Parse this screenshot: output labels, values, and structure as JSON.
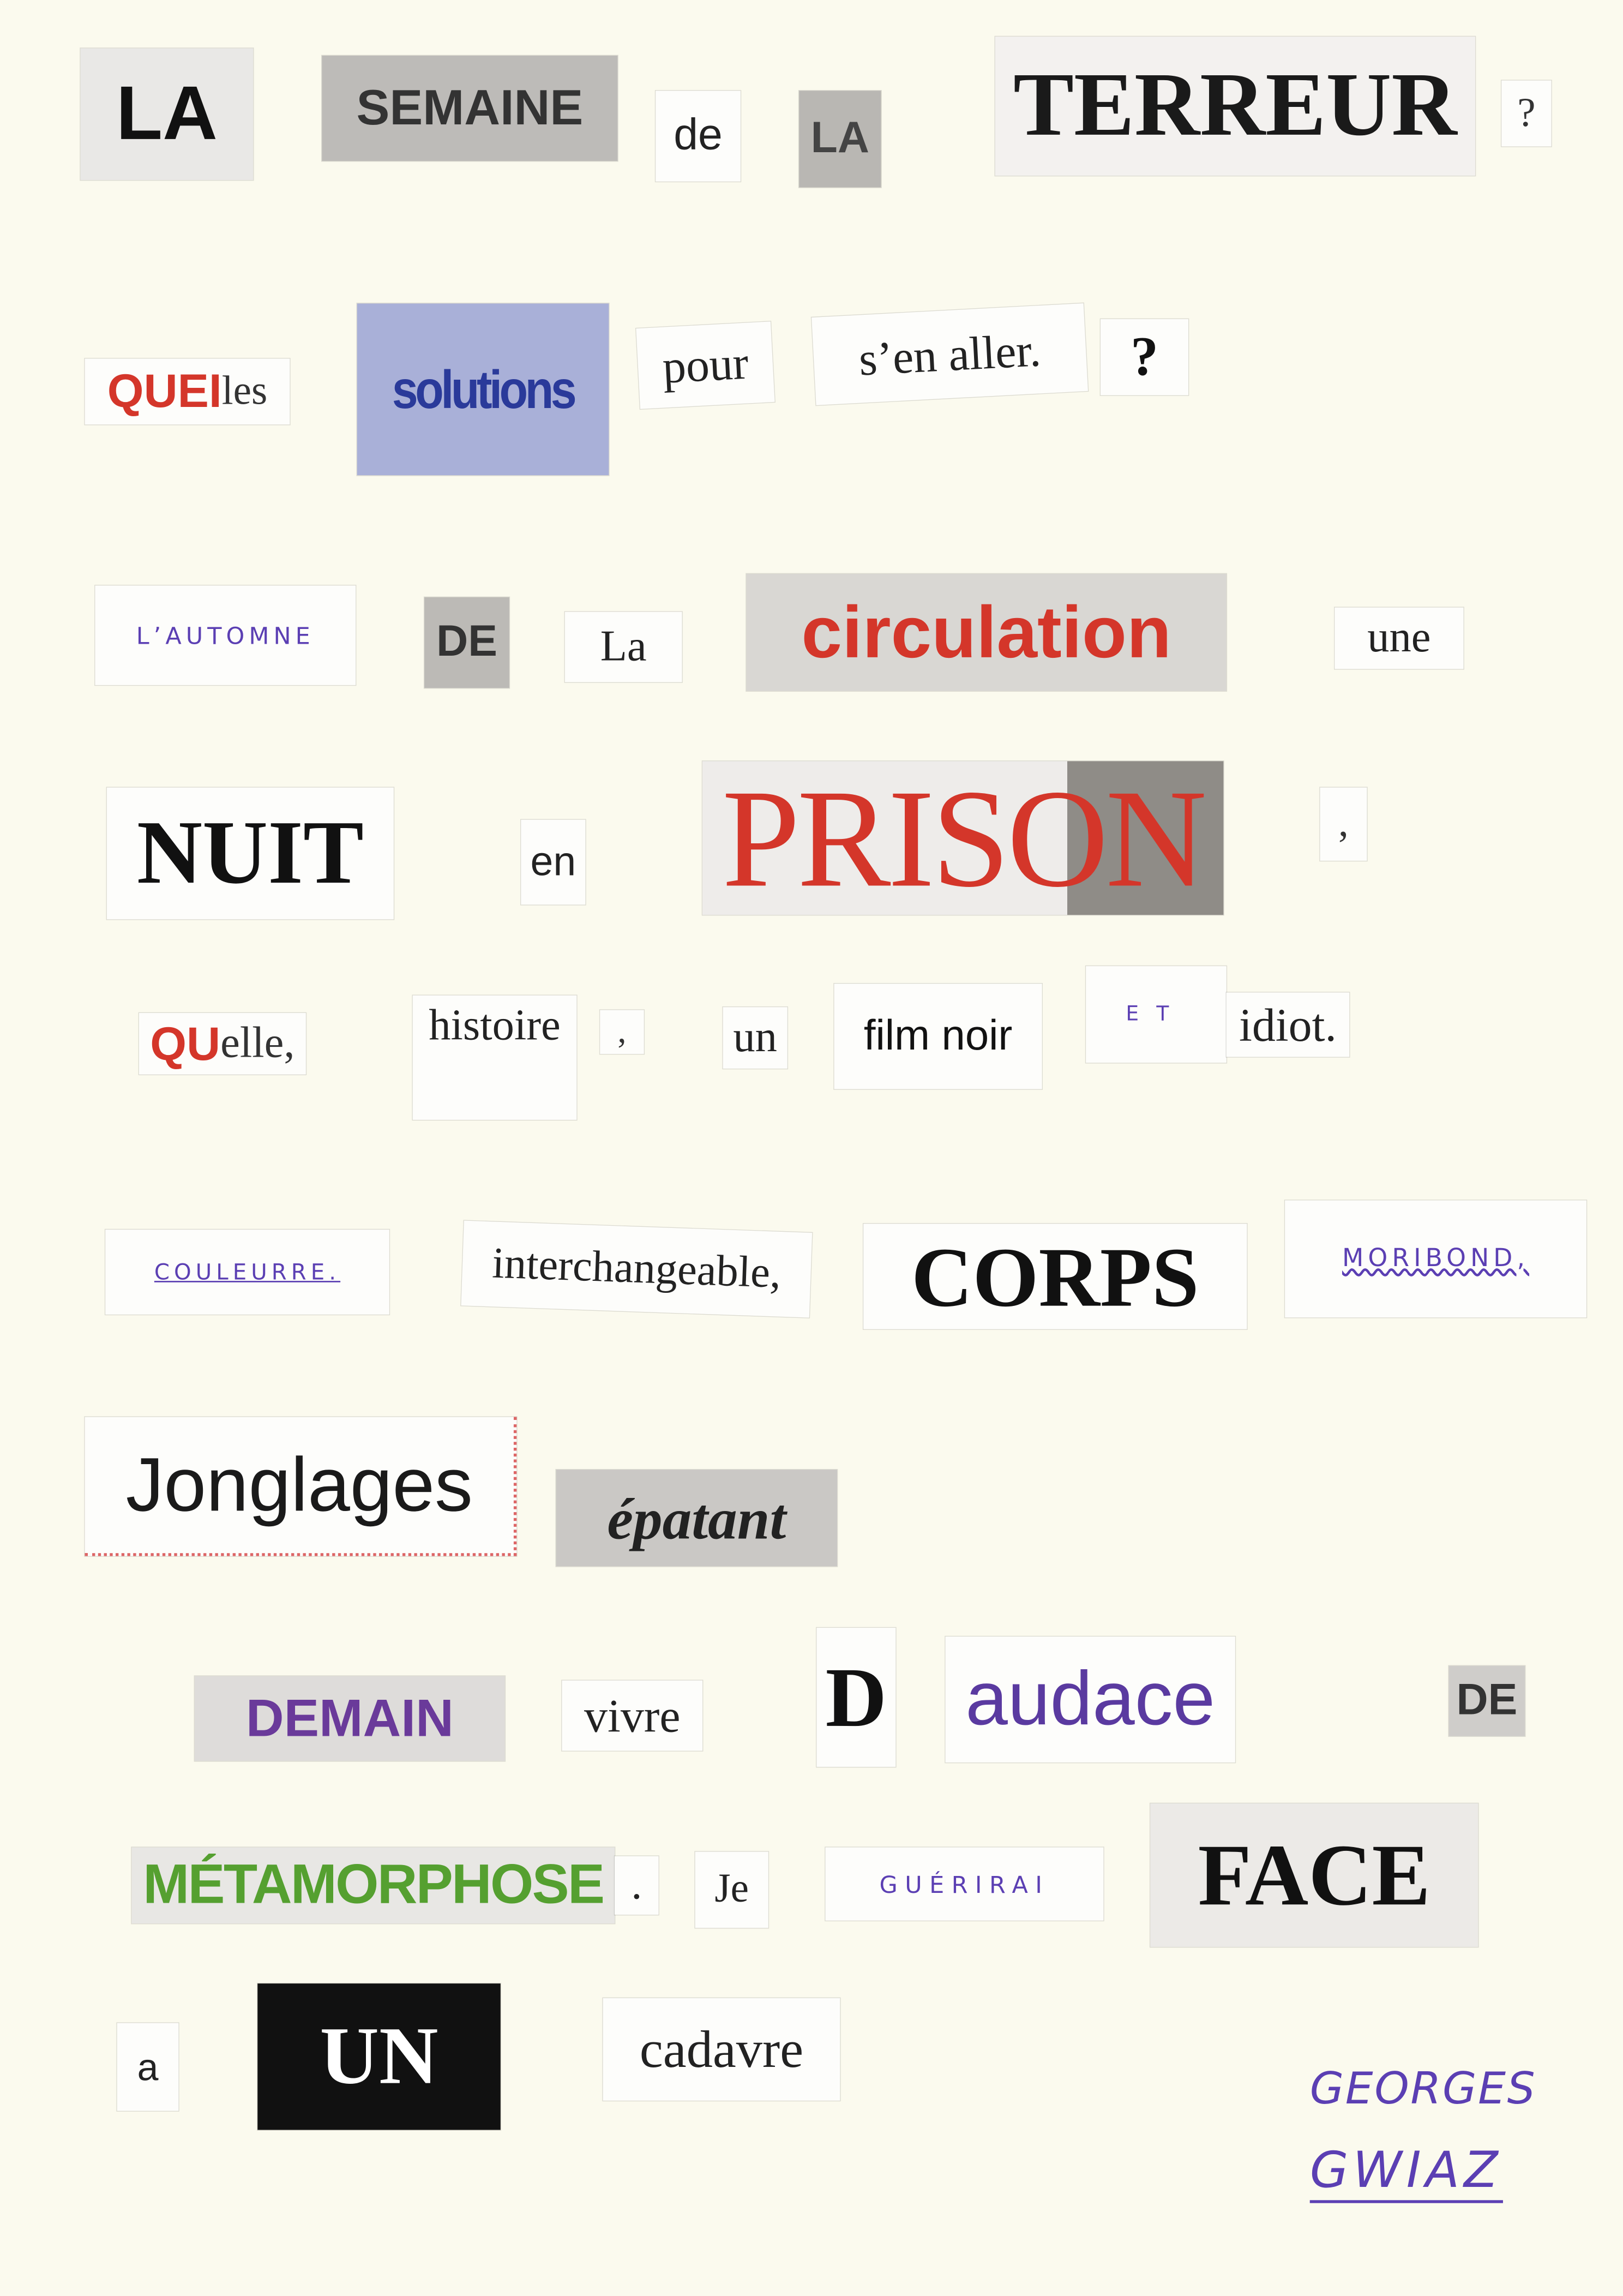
{
  "clippings": [
    {
      "text": "LA"
    },
    {
      "text": "SEMAINE"
    },
    {
      "text": "de"
    },
    {
      "text": "LA"
    },
    {
      "text": "TERREUR"
    },
    {
      "text": "?"
    },
    {
      "parts": [
        "QUEI",
        "les"
      ]
    },
    {
      "text": "solutions"
    },
    {
      "text": "pour"
    },
    {
      "text": "s’en  aller."
    },
    {
      "text": "?"
    },
    {
      "text": "L’AUTOMNE"
    },
    {
      "text": "DE"
    },
    {
      "text": "La"
    },
    {
      "text": "circulation"
    },
    {
      "text": "une"
    },
    {
      "text": "NUIT"
    },
    {
      "text": "en"
    },
    {
      "text": "PRISON"
    },
    {
      "text": ","
    },
    {
      "parts": [
        "QU",
        "elle,"
      ]
    },
    {
      "text": "histoire"
    },
    {
      "text": ","
    },
    {
      "text": "un"
    },
    {
      "text": "film noir"
    },
    {
      "text": "ET"
    },
    {
      "text": "idiot."
    },
    {
      "text": "COULEURRE."
    },
    {
      "text": "interchangeable,"
    },
    {
      "text": "CORPS"
    },
    {
      "text": "MORIBOND,"
    },
    {
      "text": "Jonglages"
    },
    {
      "text": "épatant"
    },
    {
      "text": "DEMAIN"
    },
    {
      "text": "vivre"
    },
    {
      "text": "D"
    },
    {
      "text": "audace"
    },
    {
      "text": "DE"
    },
    {
      "text": "MÉTAMORPHOSE"
    },
    {
      "text": "."
    },
    {
      "text": "Je"
    },
    {
      "text": "GUÉRIRAI"
    },
    {
      "text": "FACE"
    },
    {
      "text": "a"
    },
    {
      "text": "UN"
    },
    {
      "text": "cadavre"
    }
  ],
  "signature": {
    "line1": "GEORGES",
    "line2": "GWIAZ"
  },
  "colors": {
    "paper": "#fbfaee",
    "ink": "#5b3fb3",
    "red": "#d4362a",
    "purple": "#6a3a9a",
    "green": "#55a030",
    "blue_clip": "#a9b0d8"
  }
}
